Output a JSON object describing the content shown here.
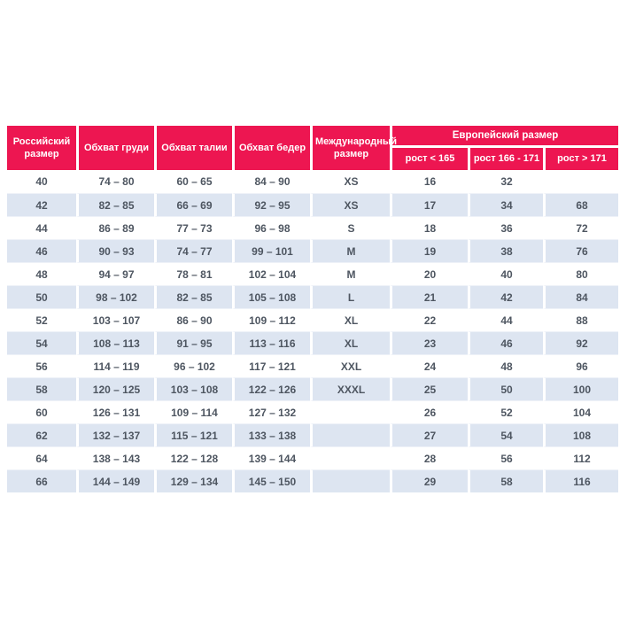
{
  "colors": {
    "header_bg": "#ed1651",
    "header_text": "#ffffff",
    "row_alt_bg": "#dde5f1",
    "cell_text": "#4e5661",
    "row_border": "#eef2f8"
  },
  "chart_data": {
    "type": "table",
    "headers": {
      "russian_size": "Российский размер",
      "chest": "Обхват груди",
      "waist": "Обхват талии",
      "hips": "Обхват бедер",
      "international_size": "Международный размер",
      "european_group": "Европейский размер",
      "european_subcolumns": [
        "рост < 165",
        "рост 166 - 171",
        "рост > 171"
      ]
    },
    "rows": [
      [
        "40",
        "74 – 80",
        "60 – 65",
        "84 – 90",
        "XS",
        "16",
        "32",
        ""
      ],
      [
        "42",
        "82 – 85",
        "66 – 69",
        "92 – 95",
        "XS",
        "17",
        "34",
        "68"
      ],
      [
        "44",
        "86 – 89",
        "77 – 73",
        "96 – 98",
        "S",
        "18",
        "36",
        "72"
      ],
      [
        "46",
        "90 – 93",
        "74 – 77",
        "99 – 101",
        "M",
        "19",
        "38",
        "76"
      ],
      [
        "48",
        "94 – 97",
        "78 – 81",
        "102 – 104",
        "M",
        "20",
        "40",
        "80"
      ],
      [
        "50",
        "98 – 102",
        "82 – 85",
        "105 – 108",
        "L",
        "21",
        "42",
        "84"
      ],
      [
        "52",
        "103 – 107",
        "86 – 90",
        "109 – 112",
        "XL",
        "22",
        "44",
        "88"
      ],
      [
        "54",
        "108 – 113",
        "91 – 95",
        "113 – 116",
        "XL",
        "23",
        "46",
        "92"
      ],
      [
        "56",
        "114 – 119",
        "96 – 102",
        "117 – 121",
        "XXL",
        "24",
        "48",
        "96"
      ],
      [
        "58",
        "120 – 125",
        "103 – 108",
        "122 – 126",
        "XXXL",
        "25",
        "50",
        "100"
      ],
      [
        "60",
        "126 – 131",
        "109 – 114",
        "127 – 132",
        "",
        "26",
        "52",
        "104"
      ],
      [
        "62",
        "132 – 137",
        "115 – 121",
        "133 – 138",
        "",
        "27",
        "54",
        "108"
      ],
      [
        "64",
        "138 – 143",
        "122 – 128",
        "139 – 144",
        "",
        "28",
        "56",
        "112"
      ],
      [
        "66",
        "144 – 149",
        "129 – 134",
        "145 – 150",
        "",
        "29",
        "58",
        "116"
      ]
    ]
  }
}
